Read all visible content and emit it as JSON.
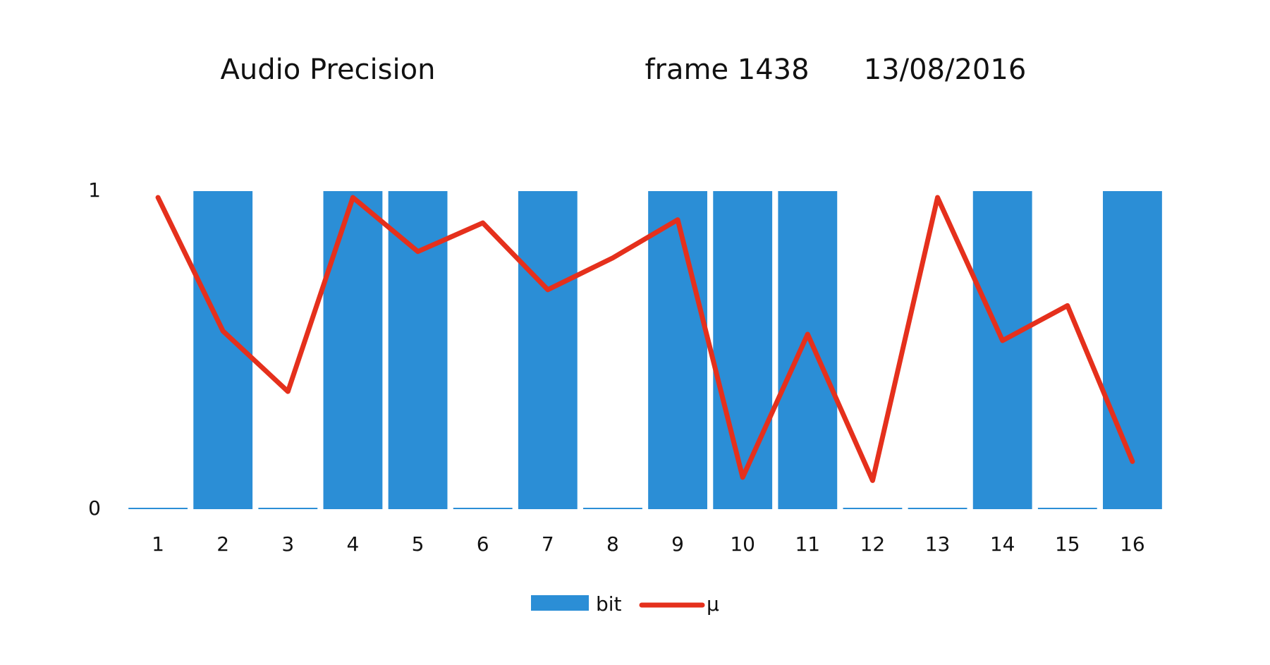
{
  "chart_data": {
    "type": "bar_line",
    "title": "Audio Precision",
    "annotations": [
      "frame 1438",
      "13/08/2016"
    ],
    "categories": [
      "1",
      "2",
      "3",
      "4",
      "5",
      "6",
      "7",
      "8",
      "9",
      "10",
      "11",
      "12",
      "13",
      "14",
      "15",
      "16"
    ],
    "series": [
      {
        "name": "bit",
        "type": "bar",
        "color": "#2b8ed6",
        "values": [
          0,
          1,
          0,
          1,
          1,
          0,
          1,
          0,
          1,
          1,
          1,
          0,
          0,
          1,
          0,
          1
        ]
      },
      {
        "name": "μ",
        "type": "line",
        "color": "#e5301c",
        "values": [
          0.98,
          0.56,
          0.37,
          0.98,
          0.81,
          0.9,
          0.69,
          0.79,
          0.91,
          0.1,
          0.55,
          0.09,
          0.98,
          0.53,
          0.64,
          0.15
        ]
      }
    ],
    "ylim": [
      0,
      1
    ],
    "yticks": [
      0,
      1
    ],
    "grid": false,
    "legend": "bottom"
  }
}
